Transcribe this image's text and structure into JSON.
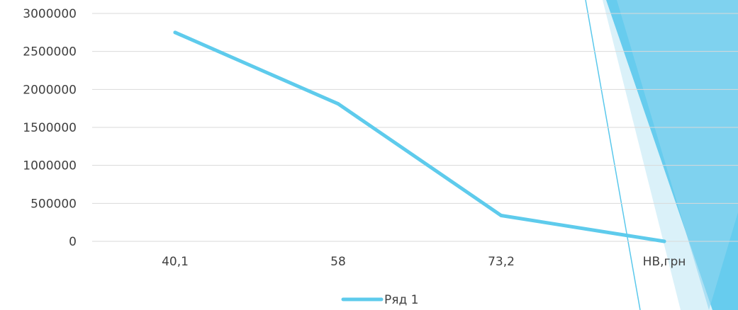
{
  "chart_data": {
    "type": "line",
    "categories": [
      "40,1",
      "58",
      "73,2",
      "НВ,грн"
    ],
    "series": [
      {
        "name": "Ряд 1",
        "values": [
          2750000,
          1810000,
          340000,
          0
        ]
      }
    ],
    "y_ticks": [
      "0",
      "500000",
      "1000000",
      "1500000",
      "2000000",
      "2500000",
      "3000000"
    ],
    "ylim": [
      0,
      3000000
    ],
    "grid": true,
    "legend": "bottom",
    "colors": {
      "series": "#5ecbec",
      "grid": "#d9d9d9",
      "decor_dark": "#5ac8ec",
      "decor_light": "#a8def1"
    }
  }
}
